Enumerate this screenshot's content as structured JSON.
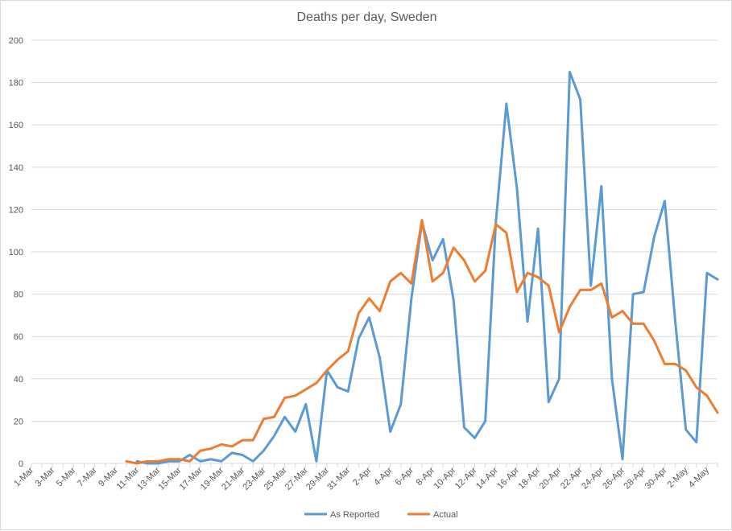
{
  "chart_data": {
    "type": "line",
    "title": "Deaths per day, Sweden",
    "xlabel": "",
    "ylabel": "",
    "ylim": [
      0,
      200
    ],
    "yticks": [
      0,
      20,
      40,
      60,
      80,
      100,
      120,
      140,
      160,
      180,
      200
    ],
    "grid": true,
    "legend_position": "bottom",
    "categories": [
      "1-Mar",
      "2-Mar",
      "3-Mar",
      "4-Mar",
      "5-Mar",
      "6-Mar",
      "7-Mar",
      "8-Mar",
      "9-Mar",
      "10-Mar",
      "11-Mar",
      "12-Mar",
      "13-Mar",
      "14-Mar",
      "15-Mar",
      "16-Mar",
      "17-Mar",
      "18-Mar",
      "19-Mar",
      "20-Mar",
      "21-Mar",
      "22-Mar",
      "23-Mar",
      "24-Mar",
      "25-Mar",
      "26-Mar",
      "27-Mar",
      "28-Mar",
      "29-Mar",
      "30-Mar",
      "31-Mar",
      "1-Apr",
      "2-Apr",
      "3-Apr",
      "4-Apr",
      "5-Apr",
      "6-Apr",
      "7-Apr",
      "8-Apr",
      "9-Apr",
      "10-Apr",
      "11-Apr",
      "12-Apr",
      "13-Apr",
      "14-Apr",
      "15-Apr",
      "16-Apr",
      "17-Apr",
      "18-Apr",
      "19-Apr",
      "20-Apr",
      "21-Apr",
      "22-Apr",
      "23-Apr",
      "24-Apr",
      "25-Apr",
      "26-Apr",
      "27-Apr",
      "28-Apr",
      "29-Apr",
      "30-Apr",
      "1-May",
      "2-May",
      "3-May",
      "4-May",
      "5-May"
    ],
    "tick_labels": [
      "1-Mar",
      "3-Mar",
      "5-Mar",
      "7-Mar",
      "9-Mar",
      "11-Mar",
      "13-Mar",
      "15-Mar",
      "17-Mar",
      "19-Mar",
      "21-Mar",
      "23-Mar",
      "25-Mar",
      "27-Mar",
      "29-Mar",
      "31-Mar",
      "2-Apr",
      "4-Apr",
      "6-Apr",
      "8-Apr",
      "10-Apr",
      "12-Apr",
      "14-Apr",
      "16-Apr",
      "18-Apr",
      "20-Apr",
      "22-Apr",
      "24-Apr",
      "26-Apr",
      "28-Apr",
      "30-Apr",
      "2-May",
      "4-May"
    ],
    "series": [
      {
        "name": "As Reported",
        "color": "#5b9bd5",
        "values": [
          null,
          null,
          null,
          null,
          null,
          null,
          null,
          null,
          null,
          null,
          1,
          0,
          0,
          1,
          1,
          4,
          1,
          2,
          1,
          5,
          4,
          1,
          6,
          13,
          22,
          15,
          28,
          1,
          44,
          36,
          34,
          59,
          69,
          50,
          15,
          28,
          78,
          114,
          96,
          106,
          77,
          17,
          12,
          20,
          114,
          170,
          130,
          67,
          111,
          29,
          40,
          185,
          172,
          84,
          131,
          40,
          2,
          80,
          81,
          107,
          124,
          67,
          16,
          10,
          90,
          87
        ]
      },
      {
        "name": "Actual",
        "color": "#ed7d31",
        "values": [
          null,
          null,
          null,
          null,
          null,
          0.5,
          null,
          null,
          null,
          1,
          0,
          1,
          1,
          2,
          2,
          1,
          6,
          7,
          9,
          8,
          11,
          11,
          21,
          22,
          31,
          32,
          35,
          38,
          44,
          49,
          53,
          71,
          78,
          72,
          86,
          90,
          85,
          115,
          86,
          90,
          102,
          96,
          86,
          91,
          113,
          109,
          81,
          90,
          88,
          84,
          62,
          74,
          82,
          82,
          85,
          69,
          72,
          66,
          66,
          58,
          47,
          47,
          44,
          36,
          32,
          24
        ]
      }
    ]
  }
}
